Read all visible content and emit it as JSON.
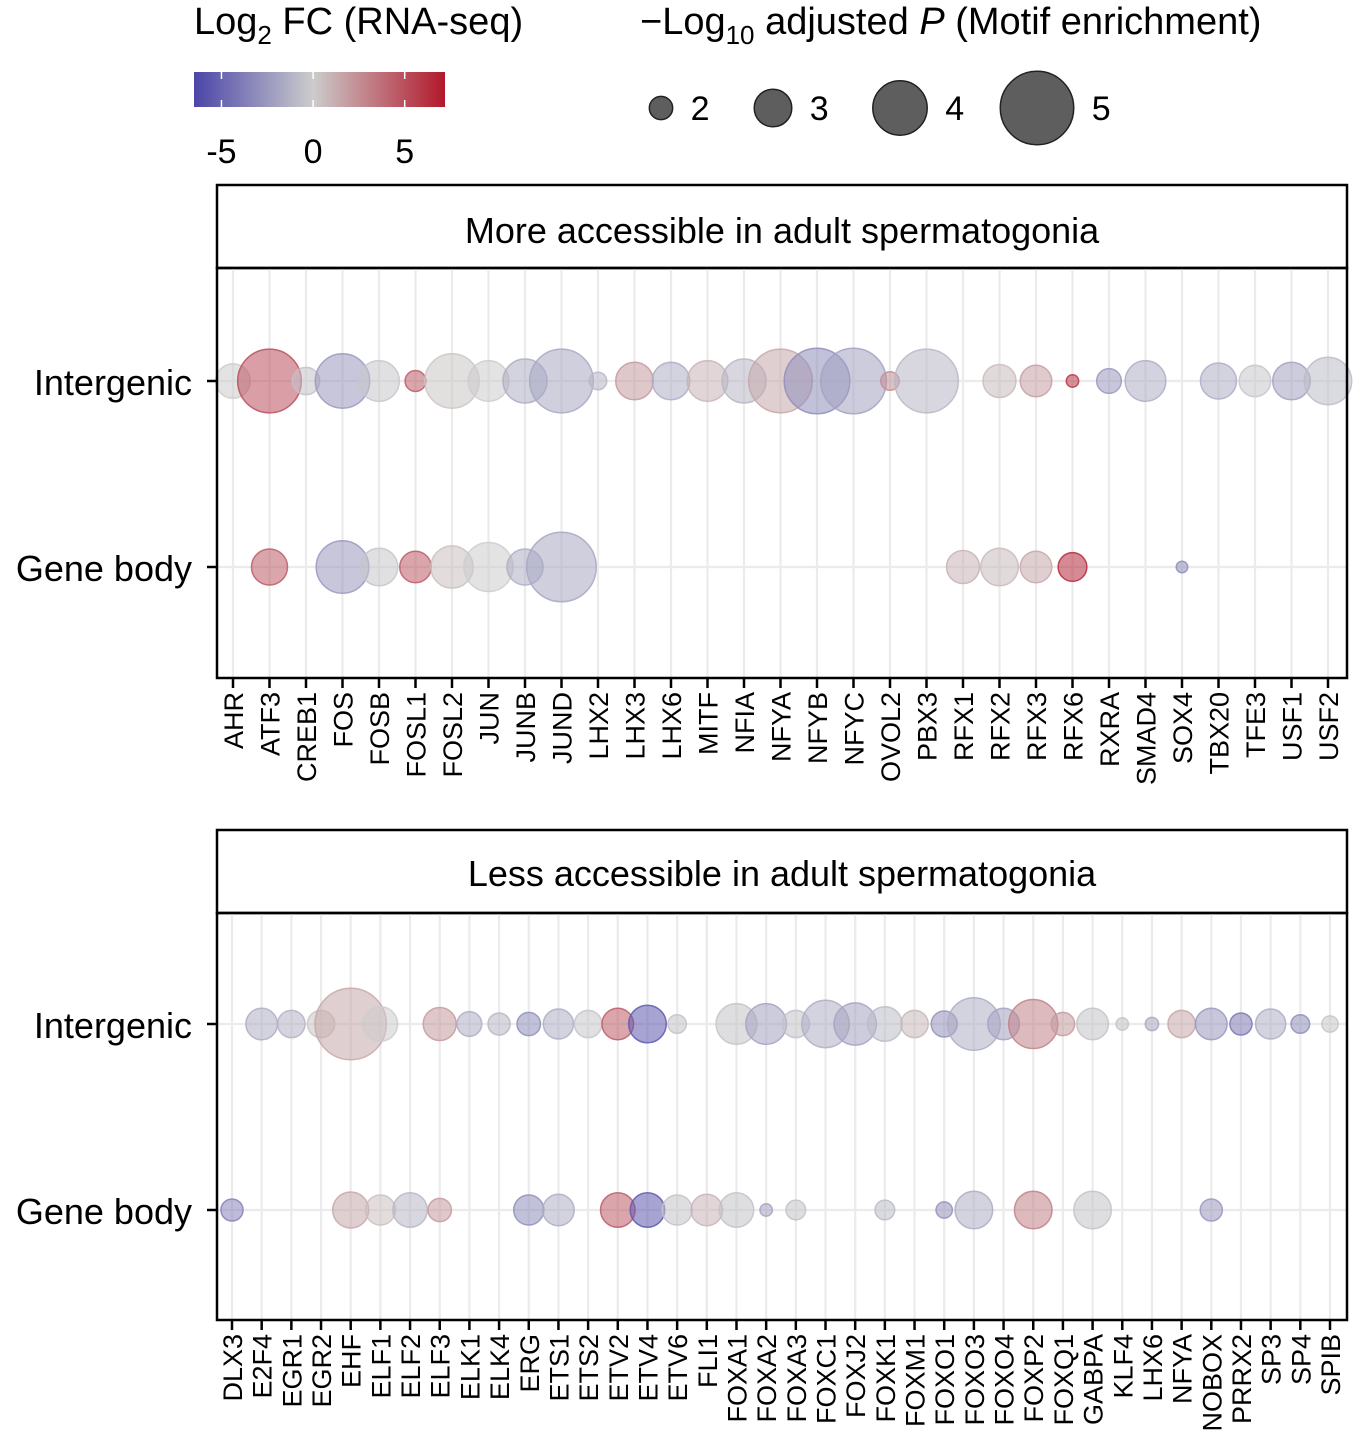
{
  "legend": {
    "color": {
      "title_main": "Log",
      "title_sub": "2",
      "title_rest": " FC (RNA-seq)",
      "min": -6.5,
      "max": 7.2,
      "ticks": [
        "-5",
        "0",
        "5"
      ],
      "tick_values": [
        -5,
        0,
        5
      ],
      "low_color": "#4b45a8",
      "mid_color": "#cccccc",
      "high_color": "#b2182b"
    },
    "size": {
      "title_pre": "−Log",
      "title_sub": "10",
      "title_mid": " adjusted ",
      "title_italic": "P",
      "title_post": " (Motif enrichment)",
      "levels": [
        2,
        3,
        4,
        5
      ],
      "labels": [
        "2",
        "3",
        "4",
        "5"
      ]
    }
  },
  "chart_data": [
    {
      "type": "scatter",
      "title": "More accessible in adult spermatogonia",
      "rows": [
        "Intergenic",
        "Gene body"
      ],
      "categories": [
        "AHR",
        "ATF3",
        "CREB1",
        "FOS",
        "FOSB",
        "FOSL1",
        "FOSL2",
        "JUN",
        "JUNB",
        "JUND",
        "LHX2",
        "LHX3",
        "LHX6",
        "MITF",
        "NFIA",
        "NFYA",
        "NFYB",
        "NFYC",
        "OVOL2",
        "PBX3",
        "RFX1",
        "RFX2",
        "RFX3",
        "RFX6",
        "RXRA",
        "SMAD4",
        "SOX4",
        "TBX20",
        "TFE3",
        "USF1",
        "USF2"
      ],
      "points": [
        {
          "tf": "AHR",
          "row": "Intergenic",
          "size": 2.8,
          "fc": 0.0
        },
        {
          "tf": "ATF3",
          "row": "Intergenic",
          "size": 4.5,
          "fc": 5.0
        },
        {
          "tf": "CREB1",
          "row": "Intergenic",
          "size": 2.3,
          "fc": -0.5
        },
        {
          "tf": "FOS",
          "row": "Intergenic",
          "size": 4.0,
          "fc": -2.5
        },
        {
          "tf": "FOSB",
          "row": "Intergenic",
          "size": 3.2,
          "fc": -0.3
        },
        {
          "tf": "FOSL1",
          "row": "Intergenic",
          "size": 1.8,
          "fc": 4.5
        },
        {
          "tf": "FOSL2",
          "row": "Intergenic",
          "size": 4.0,
          "fc": 0.3
        },
        {
          "tf": "JUN",
          "row": "Intergenic",
          "size": 3.2,
          "fc": 0.0
        },
        {
          "tf": "JUNB",
          "row": "Intergenic",
          "size": 3.4,
          "fc": -1.5
        },
        {
          "tf": "JUND",
          "row": "Intergenic",
          "size": 4.5,
          "fc": -1.8
        },
        {
          "tf": "LHX2",
          "row": "Intergenic",
          "size": 1.5,
          "fc": -1.0
        },
        {
          "tf": "LHX3",
          "row": "Intergenic",
          "size": 3.0,
          "fc": 2.0
        },
        {
          "tf": "LHX6",
          "row": "Intergenic",
          "size": 3.0,
          "fc": -1.5
        },
        {
          "tf": "MITF",
          "row": "Intergenic",
          "size": 3.2,
          "fc": 1.0
        },
        {
          "tf": "NFIA",
          "row": "Intergenic",
          "size": 3.4,
          "fc": -1.0
        },
        {
          "tf": "NFYA",
          "row": "Intergenic",
          "size": 4.5,
          "fc": 1.5
        },
        {
          "tf": "NFYB",
          "row": "Intergenic",
          "size": 4.6,
          "fc": -3.0
        },
        {
          "tf": "NFYC",
          "row": "Intergenic",
          "size": 4.6,
          "fc": -2.0
        },
        {
          "tf": "OVOL2",
          "row": "Intergenic",
          "size": 1.6,
          "fc": 2.5
        },
        {
          "tf": "PBX3",
          "row": "Intergenic",
          "size": 4.5,
          "fc": -1.0
        },
        {
          "tf": "RFX2",
          "row": "Intergenic",
          "size": 2.7,
          "fc": 0.7
        },
        {
          "tf": "RFX3",
          "row": "Intergenic",
          "size": 2.6,
          "fc": 1.8
        },
        {
          "tf": "RFX6",
          "row": "Intergenic",
          "size": 1.0,
          "fc": 6.0
        },
        {
          "tf": "RXRA",
          "row": "Intergenic",
          "size": 2.1,
          "fc": -2.5
        },
        {
          "tf": "SMAD4",
          "row": "Intergenic",
          "size": 3.2,
          "fc": -1.5
        },
        {
          "tf": "TBX20",
          "row": "Intergenic",
          "size": 2.9,
          "fc": -1.5
        },
        {
          "tf": "TFE3",
          "row": "Intergenic",
          "size": 2.6,
          "fc": -0.3
        },
        {
          "tf": "USF1",
          "row": "Intergenic",
          "size": 3.0,
          "fc": -2.0
        },
        {
          "tf": "USF2",
          "row": "Intergenic",
          "size": 3.6,
          "fc": -0.8
        },
        {
          "tf": "ATF3",
          "row": "Gene body",
          "size": 2.9,
          "fc": 4.5
        },
        {
          "tf": "FOS",
          "row": "Gene body",
          "size": 3.9,
          "fc": -2.5
        },
        {
          "tf": "FOSB",
          "row": "Gene body",
          "size": 3.0,
          "fc": -0.3
        },
        {
          "tf": "FOSL1",
          "row": "Gene body",
          "size": 2.6,
          "fc": 4.5
        },
        {
          "tf": "FOSL2",
          "row": "Gene body",
          "size": 3.3,
          "fc": 0.5
        },
        {
          "tf": "JUN",
          "row": "Gene body",
          "size": 3.7,
          "fc": 0.0
        },
        {
          "tf": "JUNB",
          "row": "Gene body",
          "size": 2.9,
          "fc": -1.5
        },
        {
          "tf": "JUND",
          "row": "Gene body",
          "size": 4.8,
          "fc": -1.8
        },
        {
          "tf": "RFX1",
          "row": "Gene body",
          "size": 2.7,
          "fc": 1.0
        },
        {
          "tf": "RFX2",
          "row": "Gene body",
          "size": 3.0,
          "fc": 0.7
        },
        {
          "tf": "RFX3",
          "row": "Gene body",
          "size": 2.6,
          "fc": 1.5
        },
        {
          "tf": "RFX6",
          "row": "Gene body",
          "size": 2.4,
          "fc": 6.5
        },
        {
          "tf": "SOX4",
          "row": "Gene body",
          "size": 0.9,
          "fc": -3.0
        }
      ]
    },
    {
      "type": "scatter",
      "title": "Less accessible in adult spermatogonia",
      "rows": [
        "Intergenic",
        "Gene body"
      ],
      "categories": [
        "DLX3",
        "E2F4",
        "EGR1",
        "EGR2",
        "EHF",
        "ELF1",
        "ELF2",
        "ELF3",
        "ELK1",
        "ELK4",
        "ERG",
        "ETS1",
        "ETS2",
        "ETV2",
        "ETV4",
        "ETV6",
        "FLI1",
        "FOXA1",
        "FOXA2",
        "FOXA3",
        "FOXC1",
        "FOXJ2",
        "FOXK1",
        "FOXM1",
        "FOXO1",
        "FOXO3",
        "FOXO4",
        "FOXP2",
        "FOXQ1",
        "GABPA",
        "KLF4",
        "LHX6",
        "NFYA",
        "NOBOX",
        "PRRX2",
        "SP3",
        "SP4",
        "SPIB"
      ],
      "points": [
        {
          "tf": "E2F4",
          "row": "Intergenic",
          "size": 2.6,
          "fc": -1.5
        },
        {
          "tf": "EGR1",
          "row": "Intergenic",
          "size": 2.3,
          "fc": -1.2
        },
        {
          "tf": "EGR2",
          "row": "Intergenic",
          "size": 2.3,
          "fc": 0.3
        },
        {
          "tf": "EHF",
          "row": "Intergenic",
          "size": 4.9,
          "fc": 1.5
        },
        {
          "tf": "ELF1",
          "row": "Intergenic",
          "size": 2.8,
          "fc": 0.0
        },
        {
          "tf": "ELF3",
          "row": "Intergenic",
          "size": 2.7,
          "fc": 2.0
        },
        {
          "tf": "ELK1",
          "row": "Intergenic",
          "size": 2.1,
          "fc": -1.5
        },
        {
          "tf": "ELK4",
          "row": "Intergenic",
          "size": 1.9,
          "fc": -1.0
        },
        {
          "tf": "ERG",
          "row": "Intergenic",
          "size": 2.0,
          "fc": -3.0
        },
        {
          "tf": "ETS1",
          "row": "Intergenic",
          "size": 2.5,
          "fc": -1.5
        },
        {
          "tf": "ETS2",
          "row": "Intergenic",
          "size": 2.3,
          "fc": -0.3
        },
        {
          "tf": "ETV2",
          "row": "Intergenic",
          "size": 2.6,
          "fc": 4.5
        },
        {
          "tf": "ETV4",
          "row": "Intergenic",
          "size": 3.0,
          "fc": -5.5
        },
        {
          "tf": "ETV6",
          "row": "Intergenic",
          "size": 1.6,
          "fc": -0.5
        },
        {
          "tf": "FOXA1",
          "row": "Intergenic",
          "size": 3.2,
          "fc": -0.5
        },
        {
          "tf": "FOXA2",
          "row": "Intergenic",
          "size": 3.2,
          "fc": -2.0
        },
        {
          "tf": "FOXA3",
          "row": "Intergenic",
          "size": 2.3,
          "fc": -0.5
        },
        {
          "tf": "FOXC1",
          "row": "Intergenic",
          "size": 3.6,
          "fc": -1.5
        },
        {
          "tf": "FOXJ2",
          "row": "Intergenic",
          "size": 3.3,
          "fc": -2.0
        },
        {
          "tf": "FOXK1",
          "row": "Intergenic",
          "size": 2.8,
          "fc": -0.8
        },
        {
          "tf": "FOXM1",
          "row": "Intergenic",
          "size": 2.3,
          "fc": 0.8
        },
        {
          "tf": "FOXO1",
          "row": "Intergenic",
          "size": 2.2,
          "fc": -2.8
        },
        {
          "tf": "FOXO3",
          "row": "Intergenic",
          "size": 3.9,
          "fc": -1.5
        },
        {
          "tf": "FOXO4",
          "row": "Intergenic",
          "size": 2.6,
          "fc": -2.0
        },
        {
          "tf": "FOXP2",
          "row": "Intergenic",
          "size": 3.7,
          "fc": 3.0
        },
        {
          "tf": "FOXQ1",
          "row": "Intergenic",
          "size": 2.0,
          "fc": 2.0
        },
        {
          "tf": "GABPA",
          "row": "Intergenic",
          "size": 2.6,
          "fc": -0.5
        },
        {
          "tf": "KLF4",
          "row": "Intergenic",
          "size": 1.0,
          "fc": -0.5
        },
        {
          "tf": "LHX6",
          "row": "Intergenic",
          "size": 1.1,
          "fc": -1.8
        },
        {
          "tf": "NFYA",
          "row": "Intergenic",
          "size": 2.3,
          "fc": 1.5
        },
        {
          "tf": "NOBOX",
          "row": "Intergenic",
          "size": 2.6,
          "fc": -2.5
        },
        {
          "tf": "PRRX2",
          "row": "Intergenic",
          "size": 1.9,
          "fc": -4.0
        },
        {
          "tf": "SP3",
          "row": "Intergenic",
          "size": 2.5,
          "fc": -1.5
        },
        {
          "tf": "SP4",
          "row": "Intergenic",
          "size": 1.6,
          "fc": -3.0
        },
        {
          "tf": "SPIB",
          "row": "Intergenic",
          "size": 1.4,
          "fc": -0.3
        },
        {
          "tf": "DLX3",
          "row": "Gene body",
          "size": 1.9,
          "fc": -3.5
        },
        {
          "tf": "EHF",
          "row": "Gene body",
          "size": 2.9,
          "fc": 1.5
        },
        {
          "tf": "ELF1",
          "row": "Gene body",
          "size": 2.5,
          "fc": 0.5
        },
        {
          "tf": "ELF2",
          "row": "Gene body",
          "size": 2.8,
          "fc": -1.0
        },
        {
          "tf": "ELF3",
          "row": "Gene body",
          "size": 2.0,
          "fc": 2.0
        },
        {
          "tf": "ERG",
          "row": "Gene body",
          "size": 2.5,
          "fc": -3.0
        },
        {
          "tf": "ETS1",
          "row": "Gene body",
          "size": 2.6,
          "fc": -1.5
        },
        {
          "tf": "ETV2",
          "row": "Gene body",
          "size": 2.8,
          "fc": 4.5
        },
        {
          "tf": "ETV4",
          "row": "Gene body",
          "size": 2.8,
          "fc": -5.5
        },
        {
          "tf": "ETV6",
          "row": "Gene body",
          "size": 2.5,
          "fc": -0.5
        },
        {
          "tf": "FLI1",
          "row": "Gene body",
          "size": 2.6,
          "fc": 1.0
        },
        {
          "tf": "FOXA1",
          "row": "Gene body",
          "size": 2.8,
          "fc": -0.5
        },
        {
          "tf": "FOXA2",
          "row": "Gene body",
          "size": 1.0,
          "fc": -2.0
        },
        {
          "tf": "FOXA3",
          "row": "Gene body",
          "size": 1.7,
          "fc": -0.5
        },
        {
          "tf": "FOXK1",
          "row": "Gene body",
          "size": 1.7,
          "fc": -0.8
        },
        {
          "tf": "FOXO1",
          "row": "Gene body",
          "size": 1.4,
          "fc": -2.8
        },
        {
          "tf": "FOXO3",
          "row": "Gene body",
          "size": 3.0,
          "fc": -1.5
        },
        {
          "tf": "FOXP2",
          "row": "Gene body",
          "size": 3.0,
          "fc": 3.0
        },
        {
          "tf": "GABPA",
          "row": "Gene body",
          "size": 3.0,
          "fc": -0.5
        },
        {
          "tf": "NOBOX",
          "row": "Gene body",
          "size": 1.9,
          "fc": -2.5
        }
      ]
    }
  ]
}
